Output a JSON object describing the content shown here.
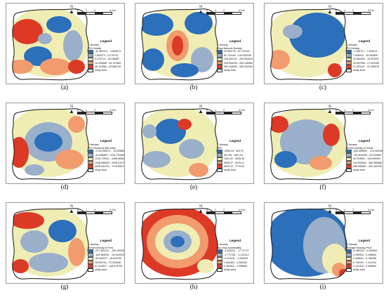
{
  "north_label": "N",
  "scale_ticks": [
    "0",
    "1",
    "2",
    "4 Km"
  ],
  "legend_title": "Legend",
  "month": "7.January",
  "study_area": "study area",
  "palette": [
    "#2c6fbb",
    "#9aafc9",
    "#f0edb4",
    "#f19b6f",
    "#dc3a26"
  ],
  "panels": [
    {
      "caption": "(a)",
      "variable": "POI Density",
      "classes": [
        "-11.452474 - -1.826473",
        "1.820473 - 5.270713",
        "5.270714 - 16.449687",
        "16.449688 - 26.107683",
        "26.107684 - 43.565733"
      ]
    },
    {
      "caption": "(b)",
      "variable": "Road Network Density",
      "classes": [
        "33.451178 - 52.731163",
        "52.731164 - 144.052146",
        "144.052147 - 205.963224",
        "205.963225 - 262.416089",
        "262.416090 - 305.202336"
      ]
    },
    {
      "caption": "(c)",
      "variable": "POI Density",
      "classes": [
        "-1.445727 - 7.428413",
        "7.428414 - 15.262899",
        "15.262900 - 19.267997",
        "19.267998 - 27.029106",
        "27.029107 - 37.908376"
      ]
    },
    {
      "caption": "(d)",
      "variable": "POI Functional Mix Index",
      "classes": [
        "-1714.039670 - -93.538806",
        "-93.538805 - 1216.729946",
        "1216.729947 - 2408.969628",
        "2408.969629 - 4296.032700",
        "4296.032701 - 7476.566747"
      ]
    },
    {
      "caption": "(e)",
      "variable": "FAR",
      "classes": [
        "-3904.49 - 801.97",
        "801.98 - 1691.51",
        "1691.52 - 3008.36",
        "3008.37 - 4675.21",
        "4675.22 - 7779.62"
      ]
    },
    {
      "caption": "(f)",
      "variable": "Kernel Density of Hotels",
      "classes": [
        "-265.469600 - -102.820460",
        "-102.820459 - 49.233980",
        "49.233981 - 144.593499",
        "144.593500 - 266.998486",
        "266.998487 - 492.449700"
      ]
    },
    {
      "caption": "(g)",
      "variable": "Kernel Density of Fires",
      "classes": [
        "-237.362113 - -106.189296",
        "-106.189295 - -45.342578",
        "-45.342577 - 28.903790",
        "28.903791 - 37.322846",
        "37.322847 - 128.019700"
      ]
    },
    {
      "caption": "(h)",
      "variable": "Bus Stop Accessibility",
      "classes": [
        "-3.426291 - -1.771727",
        "-1.771726 - -0.131412",
        "-0.131411 - 1.264453",
        "1.264454 - 2.300000",
        "2.300001 - 3.398954"
      ]
    },
    {
      "caption": "(i)",
      "variable": "Average Housing Price",
      "classes": [
        "-0.380314 - 0.169934",
        "0.169935 - 0.446630",
        "0.446631 - 0.746189",
        "0.746190 - 1.121314",
        "1.121315 - 2.365854"
      ]
    }
  ]
}
